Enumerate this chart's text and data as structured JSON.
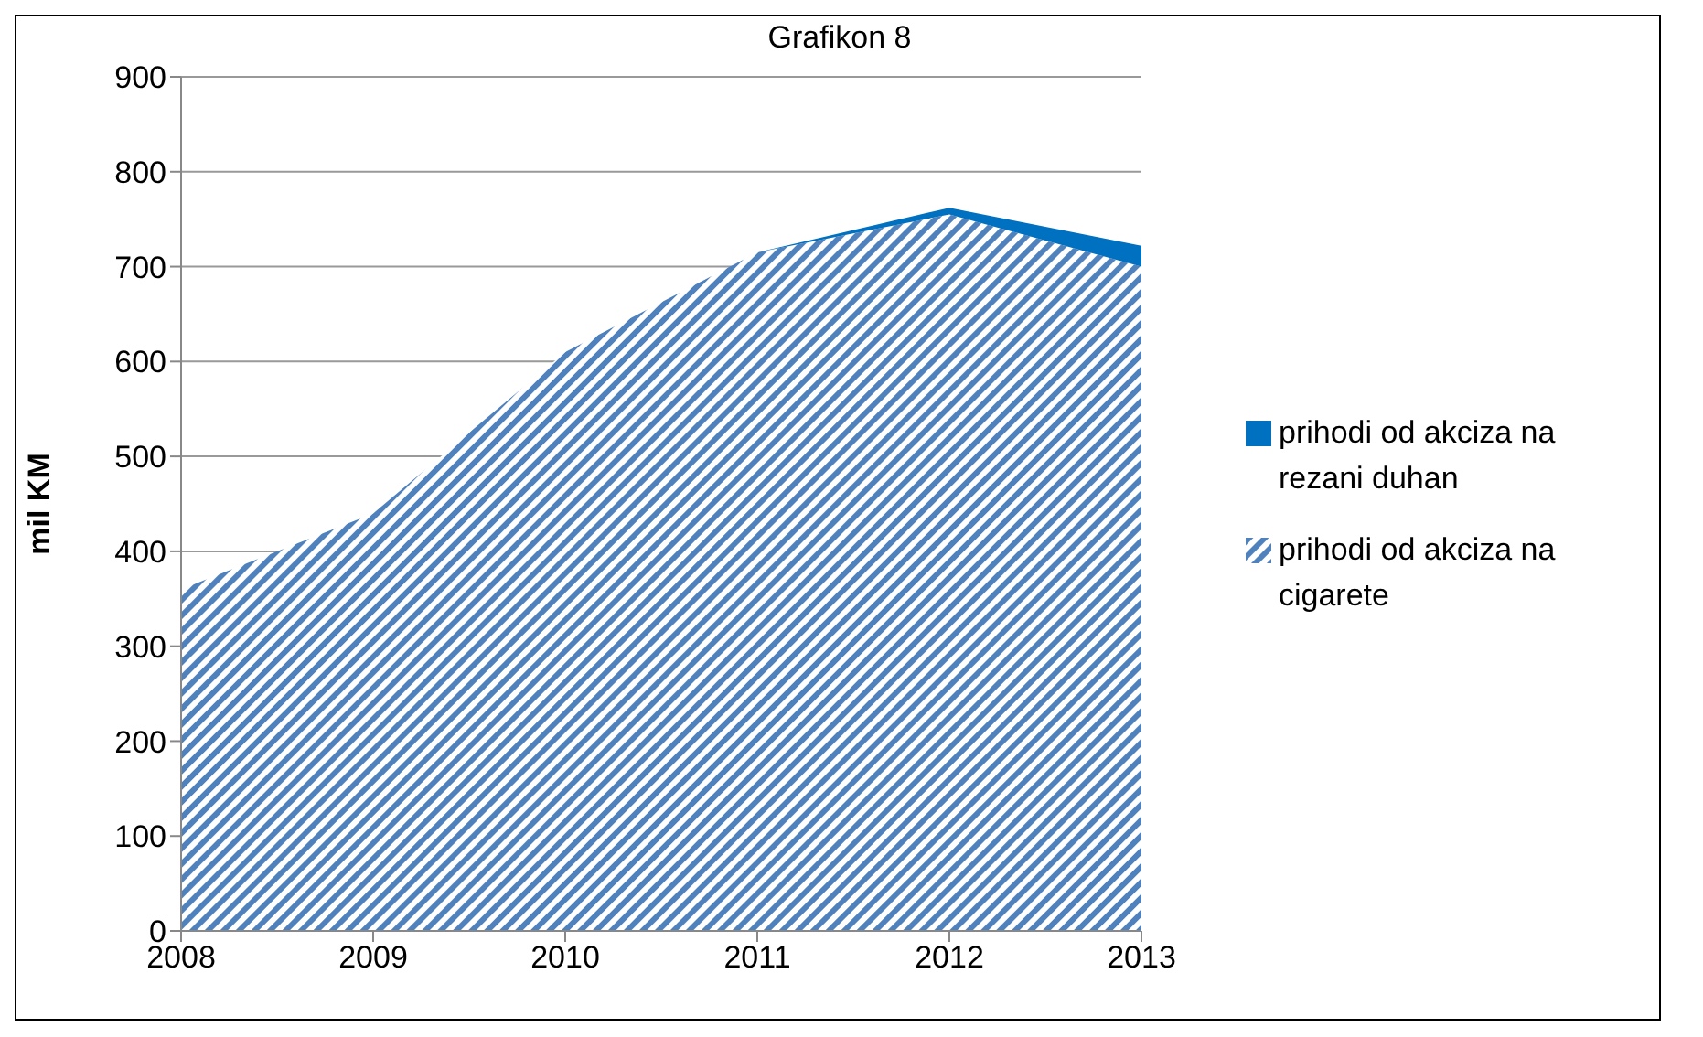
{
  "chart_data": {
    "type": "area",
    "title": "Grafikon 8",
    "ylabel": "mil KM",
    "stacked": true,
    "x": [
      2008,
      2009,
      2010,
      2011,
      2012,
      2013
    ],
    "xlim": [
      2008,
      2013
    ],
    "xticks": [
      2008,
      2009,
      2010,
      2011,
      2012,
      2013
    ],
    "ylim": [
      0,
      900
    ],
    "yticks": [
      0,
      100,
      200,
      300,
      400,
      500,
      600,
      700,
      800,
      900
    ],
    "grid": "y",
    "legend": "right",
    "series": [
      {
        "name": "prihodi od akciza na cigarete",
        "color": "#4f81bd",
        "values": [
          360,
          440,
          610,
          715,
          755,
          700
        ]
      },
      {
        "name": "prihodi od akciza na rezani duhan",
        "color": "#0070c0",
        "values": [
          0,
          0,
          0,
          0,
          7,
          22
        ]
      }
    ]
  }
}
